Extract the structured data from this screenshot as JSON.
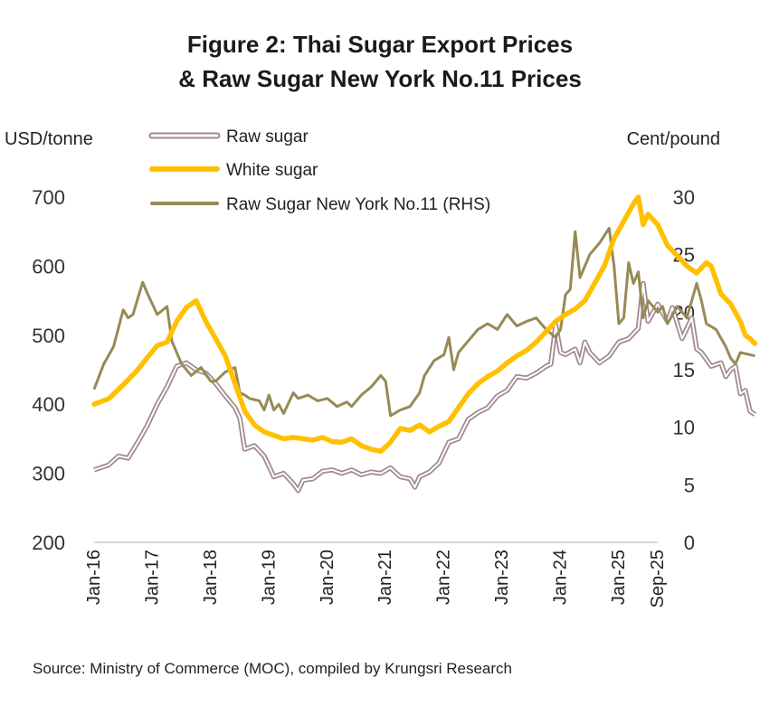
{
  "chart_data": {
    "type": "line",
    "title_line1": "Figure 2: Thai Sugar  Export Prices",
    "title_line2": "& Raw Sugar New York No.11 Prices",
    "ylabel_left": "USD/tonne",
    "ylabel_right": "Cent/pound",
    "ylim_left": [
      200,
      700
    ],
    "ylim_right": [
      0,
      30
    ],
    "yticks_left": [
      "200",
      "300",
      "400",
      "500",
      "600",
      "700"
    ],
    "yticks_right": [
      "0",
      "5",
      "10",
      "15",
      "20",
      "25",
      "30"
    ],
    "xticks": [
      "Jan-16",
      "Jan-17",
      "Jan-18",
      "Jan-19",
      "Jan-20",
      "Jan-21",
      "Jan-22",
      "Jan-23",
      "Jan-24",
      "Jan-25",
      "Sep-25"
    ],
    "x_start": "Jan-16",
    "x_end": "Sep-25",
    "source": "Source: Ministry of Commerce (MOC), compiled by Krungsri Research",
    "series": [
      {
        "name": "Raw sugar",
        "axis": "left",
        "color": "#a08a8c",
        "style": "double",
        "points": [
          [
            0,
            305
          ],
          [
            3,
            312
          ],
          [
            5,
            325
          ],
          [
            7,
            322
          ],
          [
            9,
            345
          ],
          [
            11,
            370
          ],
          [
            13,
            400
          ],
          [
            15,
            425
          ],
          [
            17,
            455
          ],
          [
            19,
            460
          ],
          [
            21,
            450
          ],
          [
            23,
            445
          ],
          [
            25,
            430
          ],
          [
            27,
            412
          ],
          [
            29,
            395
          ],
          [
            30,
            380
          ],
          [
            31,
            335
          ],
          [
            33,
            340
          ],
          [
            35,
            325
          ],
          [
            37,
            295
          ],
          [
            39,
            300
          ],
          [
            41,
            285
          ],
          [
            42,
            275
          ],
          [
            43,
            290
          ],
          [
            45,
            292
          ],
          [
            47,
            303
          ],
          [
            49,
            305
          ],
          [
            51,
            300
          ],
          [
            53,
            305
          ],
          [
            55,
            298
          ],
          [
            57,
            302
          ],
          [
            59,
            300
          ],
          [
            61,
            308
          ],
          [
            63,
            295
          ],
          [
            65,
            292
          ],
          [
            66,
            280
          ],
          [
            67,
            295
          ],
          [
            69,
            302
          ],
          [
            71,
            315
          ],
          [
            73,
            345
          ],
          [
            75,
            350
          ],
          [
            77,
            378
          ],
          [
            79,
            388
          ],
          [
            81,
            395
          ],
          [
            83,
            412
          ],
          [
            85,
            420
          ],
          [
            87,
            440
          ],
          [
            89,
            438
          ],
          [
            91,
            445
          ],
          [
            93,
            455
          ],
          [
            94,
            458
          ],
          [
            95,
            515
          ],
          [
            96,
            475
          ],
          [
            97,
            472
          ],
          [
            99,
            480
          ],
          [
            100,
            460
          ],
          [
            101,
            490
          ],
          [
            102,
            475
          ],
          [
            104,
            460
          ],
          [
            106,
            470
          ],
          [
            108,
            490
          ],
          [
            110,
            495
          ],
          [
            112,
            510
          ],
          [
            113,
            575
          ],
          [
            114,
            520
          ],
          [
            116,
            545
          ],
          [
            118,
            520
          ],
          [
            119,
            540
          ],
          [
            121,
            495
          ],
          [
            123,
            525
          ],
          [
            124,
            480
          ],
          [
            125,
            475
          ],
          [
            127,
            455
          ],
          [
            129,
            460
          ],
          [
            130,
            440
          ],
          [
            131,
            450
          ],
          [
            132,
            455
          ],
          [
            133,
            415
          ],
          [
            134,
            420
          ],
          [
            135,
            390
          ],
          [
            136,
            385
          ]
        ]
      },
      {
        "name": "White sugar",
        "axis": "left",
        "color": "#ffc000",
        "style": "thick",
        "points": [
          [
            0,
            400
          ],
          [
            3,
            408
          ],
          [
            6,
            428
          ],
          [
            9,
            450
          ],
          [
            11,
            468
          ],
          [
            13,
            485
          ],
          [
            15,
            490
          ],
          [
            17,
            520
          ],
          [
            19,
            540
          ],
          [
            21,
            550
          ],
          [
            23,
            520
          ],
          [
            25,
            495
          ],
          [
            27,
            470
          ],
          [
            29,
            430
          ],
          [
            31,
            390
          ],
          [
            33,
            370
          ],
          [
            35,
            360
          ],
          [
            37,
            355
          ],
          [
            39,
            350
          ],
          [
            41,
            352
          ],
          [
            43,
            350
          ],
          [
            45,
            348
          ],
          [
            47,
            352
          ],
          [
            49,
            346
          ],
          [
            51,
            345
          ],
          [
            53,
            350
          ],
          [
            55,
            340
          ],
          [
            57,
            335
          ],
          [
            59,
            332
          ],
          [
            61,
            345
          ],
          [
            63,
            365
          ],
          [
            65,
            362
          ],
          [
            67,
            370
          ],
          [
            69,
            360
          ],
          [
            71,
            368
          ],
          [
            73,
            375
          ],
          [
            75,
            395
          ],
          [
            77,
            415
          ],
          [
            79,
            430
          ],
          [
            81,
            440
          ],
          [
            83,
            448
          ],
          [
            85,
            460
          ],
          [
            87,
            470
          ],
          [
            89,
            478
          ],
          [
            91,
            490
          ],
          [
            93,
            505
          ],
          [
            95,
            520
          ],
          [
            97,
            530
          ],
          [
            99,
            538
          ],
          [
            101,
            550
          ],
          [
            103,
            575
          ],
          [
            105,
            600
          ],
          [
            107,
            640
          ],
          [
            109,
            665
          ],
          [
            111,
            690
          ],
          [
            112,
            700
          ],
          [
            113,
            660
          ],
          [
            114,
            675
          ],
          [
            116,
            660
          ],
          [
            118,
            630
          ],
          [
            120,
            615
          ],
          [
            122,
            600
          ],
          [
            124,
            590
          ],
          [
            126,
            605
          ],
          [
            127,
            600
          ],
          [
            129,
            560
          ],
          [
            131,
            545
          ],
          [
            133,
            520
          ],
          [
            134,
            500
          ],
          [
            135,
            495
          ],
          [
            136,
            488
          ]
        ]
      },
      {
        "name": "Raw Sugar New York No.11 (RHS)",
        "axis": "right",
        "color": "#968a57",
        "style": "thin",
        "points": [
          [
            0,
            13.3
          ],
          [
            2,
            15.5
          ],
          [
            4,
            17
          ],
          [
            6,
            20.2
          ],
          [
            7,
            19.5
          ],
          [
            8,
            19.8
          ],
          [
            10,
            22.6
          ],
          [
            11,
            21.6
          ],
          [
            13,
            19.8
          ],
          [
            15,
            20.5
          ],
          [
            16,
            17.5
          ],
          [
            18,
            15.5
          ],
          [
            20,
            14.5
          ],
          [
            22,
            15.2
          ],
          [
            24,
            14
          ],
          [
            25,
            14
          ],
          [
            27,
            14.8
          ],
          [
            29,
            15.2
          ],
          [
            30,
            13
          ],
          [
            31,
            12.8
          ],
          [
            32,
            12.5
          ],
          [
            34,
            12.3
          ],
          [
            35,
            11.5
          ],
          [
            36,
            12.8
          ],
          [
            37,
            11.5
          ],
          [
            38,
            12
          ],
          [
            39,
            11.2
          ],
          [
            41,
            13
          ],
          [
            42,
            12.5
          ],
          [
            44,
            12.8
          ],
          [
            46,
            12.3
          ],
          [
            48,
            12.5
          ],
          [
            50,
            11.8
          ],
          [
            52,
            12.2
          ],
          [
            53,
            11.8
          ],
          [
            55,
            12.8
          ],
          [
            57,
            13.5
          ],
          [
            59,
            14.5
          ],
          [
            60,
            14
          ],
          [
            61,
            11
          ],
          [
            63,
            11.5
          ],
          [
            65,
            11.8
          ],
          [
            67,
            13
          ],
          [
            68,
            14.5
          ],
          [
            70,
            15.8
          ],
          [
            72,
            16.3
          ],
          [
            73,
            17.8
          ],
          [
            74,
            15
          ],
          [
            75,
            16.5
          ],
          [
            77,
            17.5
          ],
          [
            79,
            18.5
          ],
          [
            81,
            19
          ],
          [
            83,
            18.5
          ],
          [
            85,
            19.8
          ],
          [
            87,
            18.8
          ],
          [
            89,
            19.2
          ],
          [
            91,
            19.5
          ],
          [
            93,
            18.5
          ],
          [
            95,
            17.8
          ],
          [
            96,
            18.5
          ],
          [
            97,
            21.5
          ],
          [
            98,
            22
          ],
          [
            99,
            27
          ],
          [
            100,
            23
          ],
          [
            102,
            25
          ],
          [
            104,
            26
          ],
          [
            106,
            27.3
          ],
          [
            107,
            24
          ],
          [
            108,
            19
          ],
          [
            109,
            19.5
          ],
          [
            110,
            24.3
          ],
          [
            111,
            22.5
          ],
          [
            112,
            23.5
          ],
          [
            113,
            19.5
          ],
          [
            114,
            21
          ],
          [
            116,
            20
          ],
          [
            117,
            20.5
          ],
          [
            118,
            19
          ],
          [
            120,
            20.5
          ],
          [
            121,
            20
          ],
          [
            122,
            19.5
          ],
          [
            124,
            22.5
          ],
          [
            125,
            21
          ],
          [
            126,
            19
          ],
          [
            128,
            18.5
          ],
          [
            130,
            17
          ],
          [
            131,
            16
          ],
          [
            132,
            15.5
          ],
          [
            133,
            16.5
          ],
          [
            134,
            16.4
          ],
          [
            136,
            16.2
          ]
        ]
      }
    ]
  }
}
